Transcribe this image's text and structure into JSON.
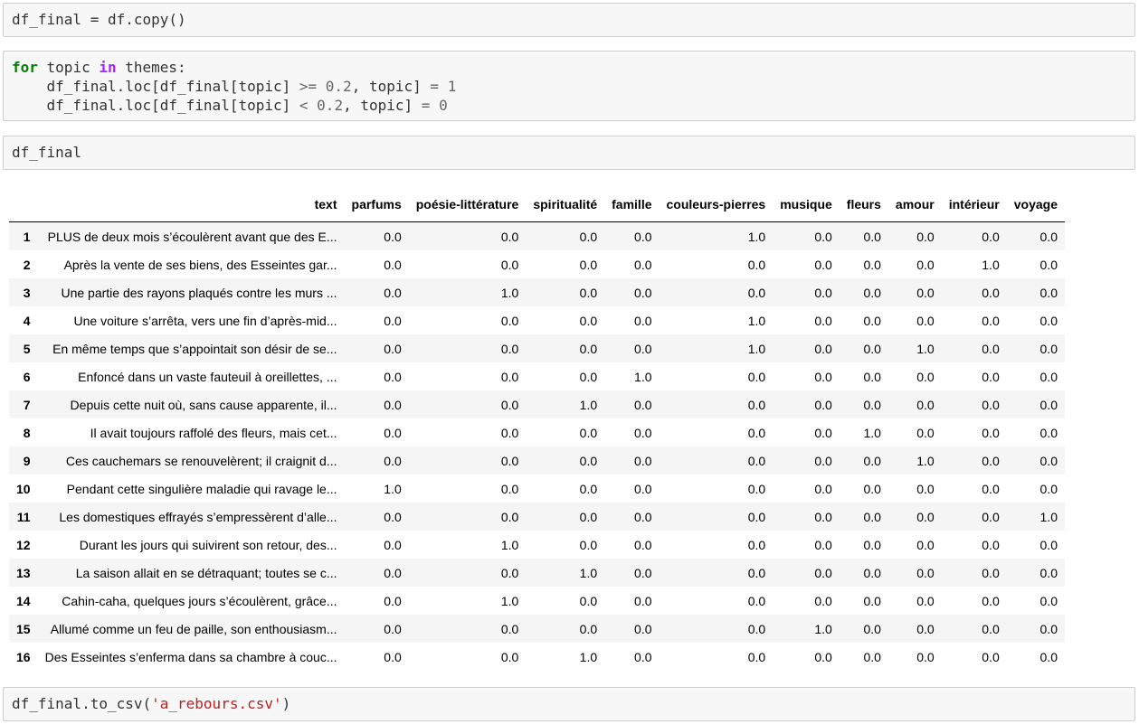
{
  "cells": {
    "c1": "df_final = df.copy()",
    "c2": {
      "kw_for": "for",
      "loopvar": " topic ",
      "kw_in": "in",
      "iter": " themes:",
      "l2_pre": "    df_final.loc[df_final[topic] ",
      "l2_op": ">=",
      "l2_mid": " ",
      "l2_num": "0.2",
      "l2_post": ", topic] ",
      "l2_eq": "=",
      "l2_sp": " ",
      "l2_val": "1",
      "l3_pre": "    df_final.loc[df_final[topic] ",
      "l3_op": "<",
      "l3_mid": " ",
      "l3_num": "0.2",
      "l3_post": ", topic] ",
      "l3_eq": "=",
      "l3_sp": " ",
      "l3_val": "0"
    },
    "c3": "df_final",
    "c4": {
      "pre": "df_final.to_csv(",
      "str": "'a_rebours.csv'",
      "post": ")"
    }
  },
  "table": {
    "columns": [
      "text",
      "parfums",
      "poésie-littérature",
      "spiritualité",
      "famille",
      "couleurs-pierres",
      "musique",
      "fleurs",
      "amour",
      "intérieur",
      "voyage"
    ],
    "rows": [
      [
        "1",
        "PLUS de deux mois s’écoulèrent avant que des E...",
        "0.0",
        "0.0",
        "0.0",
        "0.0",
        "1.0",
        "0.0",
        "0.0",
        "0.0",
        "0.0",
        "0.0"
      ],
      [
        "2",
        "Après la vente de ses biens, des Esseintes gar...",
        "0.0",
        "0.0",
        "0.0",
        "0.0",
        "0.0",
        "0.0",
        "0.0",
        "0.0",
        "1.0",
        "0.0"
      ],
      [
        "3",
        "Une partie des rayons plaqués contre les murs ...",
        "0.0",
        "1.0",
        "0.0",
        "0.0",
        "0.0",
        "0.0",
        "0.0",
        "0.0",
        "0.0",
        "0.0"
      ],
      [
        "4",
        "Une voiture s’arrêta, vers une fin d’après-mid...",
        "0.0",
        "0.0",
        "0.0",
        "0.0",
        "1.0",
        "0.0",
        "0.0",
        "0.0",
        "0.0",
        "0.0"
      ],
      [
        "5",
        "En même temps que s’appointait son désir de se...",
        "0.0",
        "0.0",
        "0.0",
        "0.0",
        "1.0",
        "0.0",
        "0.0",
        "1.0",
        "0.0",
        "0.0"
      ],
      [
        "6",
        "Enfoncé dans un vaste fauteuil à oreillettes, ...",
        "0.0",
        "0.0",
        "0.0",
        "1.0",
        "0.0",
        "0.0",
        "0.0",
        "0.0",
        "0.0",
        "0.0"
      ],
      [
        "7",
        "Depuis cette nuit où, sans cause apparente, il...",
        "0.0",
        "0.0",
        "1.0",
        "0.0",
        "0.0",
        "0.0",
        "0.0",
        "0.0",
        "0.0",
        "0.0"
      ],
      [
        "8",
        "Il avait toujours raffolé des fleurs, mais cet...",
        "0.0",
        "0.0",
        "0.0",
        "0.0",
        "0.0",
        "0.0",
        "1.0",
        "0.0",
        "0.0",
        "0.0"
      ],
      [
        "9",
        "Ces cauchemars se renouvelèrent; il craignit d...",
        "0.0",
        "0.0",
        "0.0",
        "0.0",
        "0.0",
        "0.0",
        "0.0",
        "1.0",
        "0.0",
        "0.0"
      ],
      [
        "10",
        "Pendant cette singulière maladie qui ravage le...",
        "1.0",
        "0.0",
        "0.0",
        "0.0",
        "0.0",
        "0.0",
        "0.0",
        "0.0",
        "0.0",
        "0.0"
      ],
      [
        "11",
        "Les domestiques effrayés s’empressèrent d’alle...",
        "0.0",
        "0.0",
        "0.0",
        "0.0",
        "0.0",
        "0.0",
        "0.0",
        "0.0",
        "0.0",
        "1.0"
      ],
      [
        "12",
        "Durant les jours qui suivirent son retour, des...",
        "0.0",
        "1.0",
        "0.0",
        "0.0",
        "0.0",
        "0.0",
        "0.0",
        "0.0",
        "0.0",
        "0.0"
      ],
      [
        "13",
        "La saison allait en se détraquant; toutes se c...",
        "0.0",
        "0.0",
        "1.0",
        "0.0",
        "0.0",
        "0.0",
        "0.0",
        "0.0",
        "0.0",
        "0.0"
      ],
      [
        "14",
        "Cahin-caha, quelques jours s’écoulèrent, grâce...",
        "0.0",
        "1.0",
        "0.0",
        "0.0",
        "0.0",
        "0.0",
        "0.0",
        "0.0",
        "0.0",
        "0.0"
      ],
      [
        "15",
        "Allumé comme un feu de paille, son enthousiasm...",
        "0.0",
        "0.0",
        "0.0",
        "0.0",
        "0.0",
        "1.0",
        "0.0",
        "0.0",
        "0.0",
        "0.0"
      ],
      [
        "16",
        "Des Esseintes s’enferma dans sa chambre à couc...",
        "0.0",
        "0.0",
        "1.0",
        "0.0",
        "0.0",
        "0.0",
        "0.0",
        "0.0",
        "0.0",
        "0.0"
      ]
    ]
  }
}
